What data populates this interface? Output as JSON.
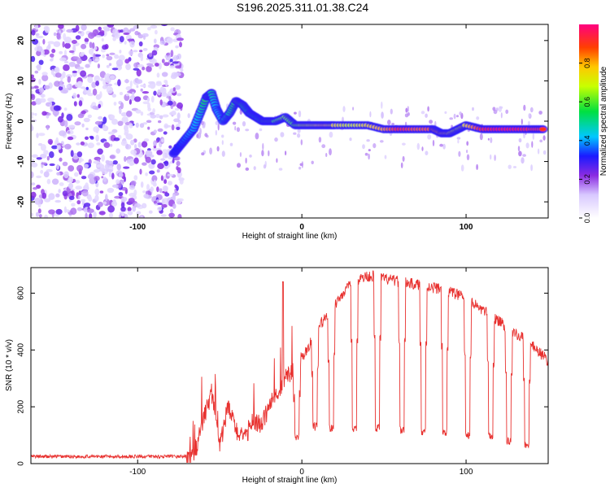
{
  "title": "S196.2025.311.01.38.C24",
  "chart_data": [
    {
      "type": "heatmap",
      "title": "",
      "xlabel": "Height of straight line (km)",
      "ylabel": "Frequency (Hz)",
      "xlim": [
        -165,
        150
      ],
      "ylim": [
        -24,
        24
      ],
      "x_ticks": [
        -100,
        0,
        100
      ],
      "y_ticks": [
        -20,
        -10,
        0,
        10,
        20
      ],
      "colorbar": {
        "label": "Normalized spectral amplitude",
        "range": [
          0,
          1
        ],
        "ticks": [
          "0.0",
          "0.2",
          "0.4",
          "0.6",
          "0.8"
        ]
      },
      "noise_region_x": [
        -165,
        -73
      ],
      "ridge": {
        "x": [
          -78,
          -72,
          -66,
          -62,
          -58,
          -55,
          -52,
          -48,
          -44,
          -40,
          -36,
          -32,
          -28,
          -24,
          -20,
          -16,
          -10,
          -4,
          2,
          8,
          14,
          20,
          30,
          40,
          50,
          60,
          70,
          80,
          85,
          90,
          95,
          100,
          110,
          120,
          130,
          140,
          148
        ],
        "y": [
          -8,
          -5,
          -2,
          2,
          6,
          7,
          3,
          0,
          2,
          5,
          4,
          2,
          1,
          0,
          0,
          0,
          1,
          -1,
          -1,
          -1,
          -1,
          -1,
          -1,
          -1,
          -2,
          -2,
          -2,
          -2,
          -3,
          -3,
          -2,
          -1,
          -2,
          -2,
          -2,
          -2,
          -2
        ],
        "amplitude": [
          0.3,
          0.35,
          0.4,
          0.45,
          0.6,
          0.5,
          0.4,
          0.45,
          0.5,
          0.6,
          0.55,
          0.5,
          0.5,
          0.55,
          0.6,
          0.6,
          0.65,
          0.6,
          0.7,
          0.75,
          0.8,
          0.75,
          0.7,
          0.75,
          0.8,
          0.9,
          0.85,
          0.85,
          0.8,
          0.75,
          0.7,
          0.75,
          0.9,
          0.95,
          0.95,
          0.9,
          0.9
        ]
      }
    },
    {
      "type": "line",
      "title": "",
      "xlabel": "Height of straight line (km)",
      "ylabel": "SNR (10 * v/v)",
      "xlim": [
        -165,
        150
      ],
      "ylim": [
        0,
        690
      ],
      "x_ticks": [
        -100,
        0,
        100
      ],
      "y_ticks": [
        0,
        200,
        400,
        600
      ],
      "color": "#e8312f",
      "series": [
        {
          "name": "SNR",
          "x": [
            -165,
            -150,
            -130,
            -110,
            -90,
            -70,
            -65,
            -60,
            -55,
            -50,
            -45,
            -40,
            -35,
            -30,
            -25,
            -20,
            -15,
            -10,
            -5,
            0,
            5,
            10,
            15,
            20,
            25,
            30,
            35,
            40,
            45,
            50,
            55,
            60,
            65,
            70,
            75,
            80,
            85,
            90,
            95,
            100,
            105,
            110,
            115,
            120,
            125,
            130,
            135,
            140,
            145,
            150
          ],
          "values": [
            25,
            25,
            25,
            25,
            25,
            25,
            40,
            150,
            250,
            60,
            200,
            120,
            80,
            160,
            130,
            200,
            250,
            300,
            330,
            370,
            420,
            480,
            520,
            560,
            600,
            630,
            650,
            660,
            660,
            650,
            645,
            640,
            635,
            630,
            625,
            620,
            615,
            605,
            595,
            580,
            560,
            540,
            520,
            500,
            480,
            460,
            440,
            420,
            390,
            360
          ],
          "dips_x": [
            -3,
            8,
            18,
            32,
            46,
            61,
            74,
            87,
            101,
            115,
            126,
            137
          ],
          "dips_value": [
            95,
            130,
            125,
            120,
            125,
            120,
            115,
            110,
            100,
            95,
            80,
            70
          ]
        }
      ]
    }
  ]
}
